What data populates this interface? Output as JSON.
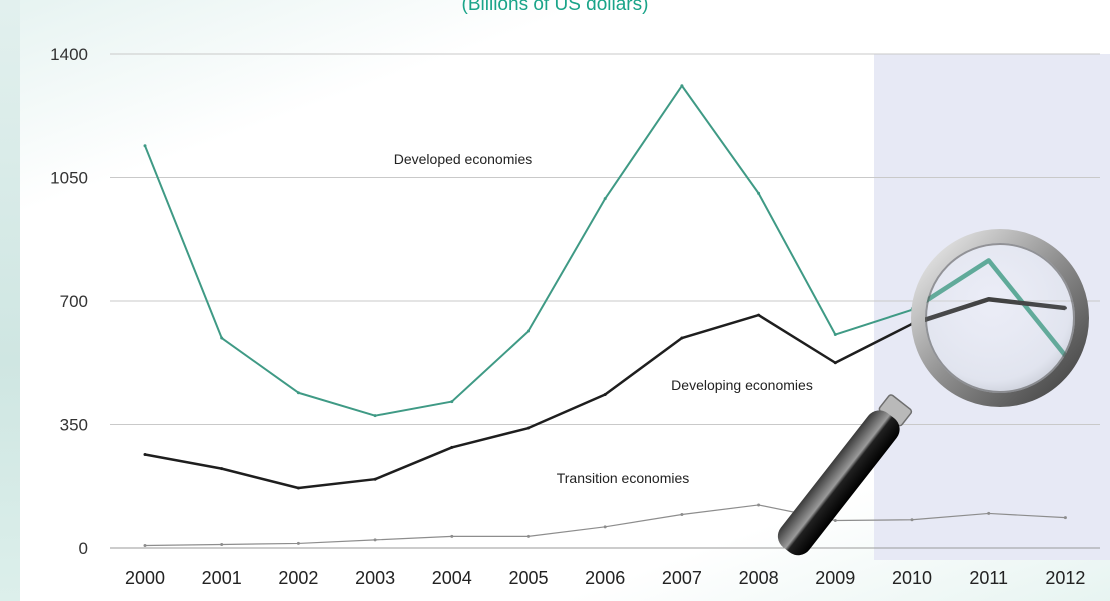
{
  "subtitle": "(Billions of US dollars)",
  "colors": {
    "developed": "#3f9a85",
    "developing": "#1e1e1e",
    "transition": "#8d8d8d",
    "grid": "#c9c9c9",
    "highlight": "#e7e9f5",
    "subtitle": "#1aa489"
  },
  "chart_data": {
    "type": "line",
    "x": [
      "2000",
      "2001",
      "2002",
      "2003",
      "2004",
      "2005",
      "2006",
      "2007",
      "2008",
      "2009",
      "2010",
      "2011",
      "2012"
    ],
    "ylim": [
      0,
      1400
    ],
    "yticks": [
      "0",
      "350",
      "700",
      "1050",
      "1400"
    ],
    "grid": true,
    "highlight_range": [
      "2010",
      "2012"
    ],
    "series": [
      {
        "name": "Developed economies",
        "key": "developed",
        "values": [
          1140,
          595,
          440,
          375,
          415,
          615,
          990,
          1310,
          1005,
          605,
          675,
          815,
          545
        ]
      },
      {
        "name": "Developing economies",
        "key": "developing",
        "values": [
          265,
          225,
          170,
          195,
          285,
          340,
          435,
          595,
          660,
          525,
          635,
          705,
          680
        ]
      },
      {
        "name": "Transition economies",
        "key": "transition",
        "values": [
          7,
          10,
          13,
          23,
          33,
          33,
          60,
          95,
          122,
          78,
          80,
          98,
          86
        ]
      }
    ]
  }
}
